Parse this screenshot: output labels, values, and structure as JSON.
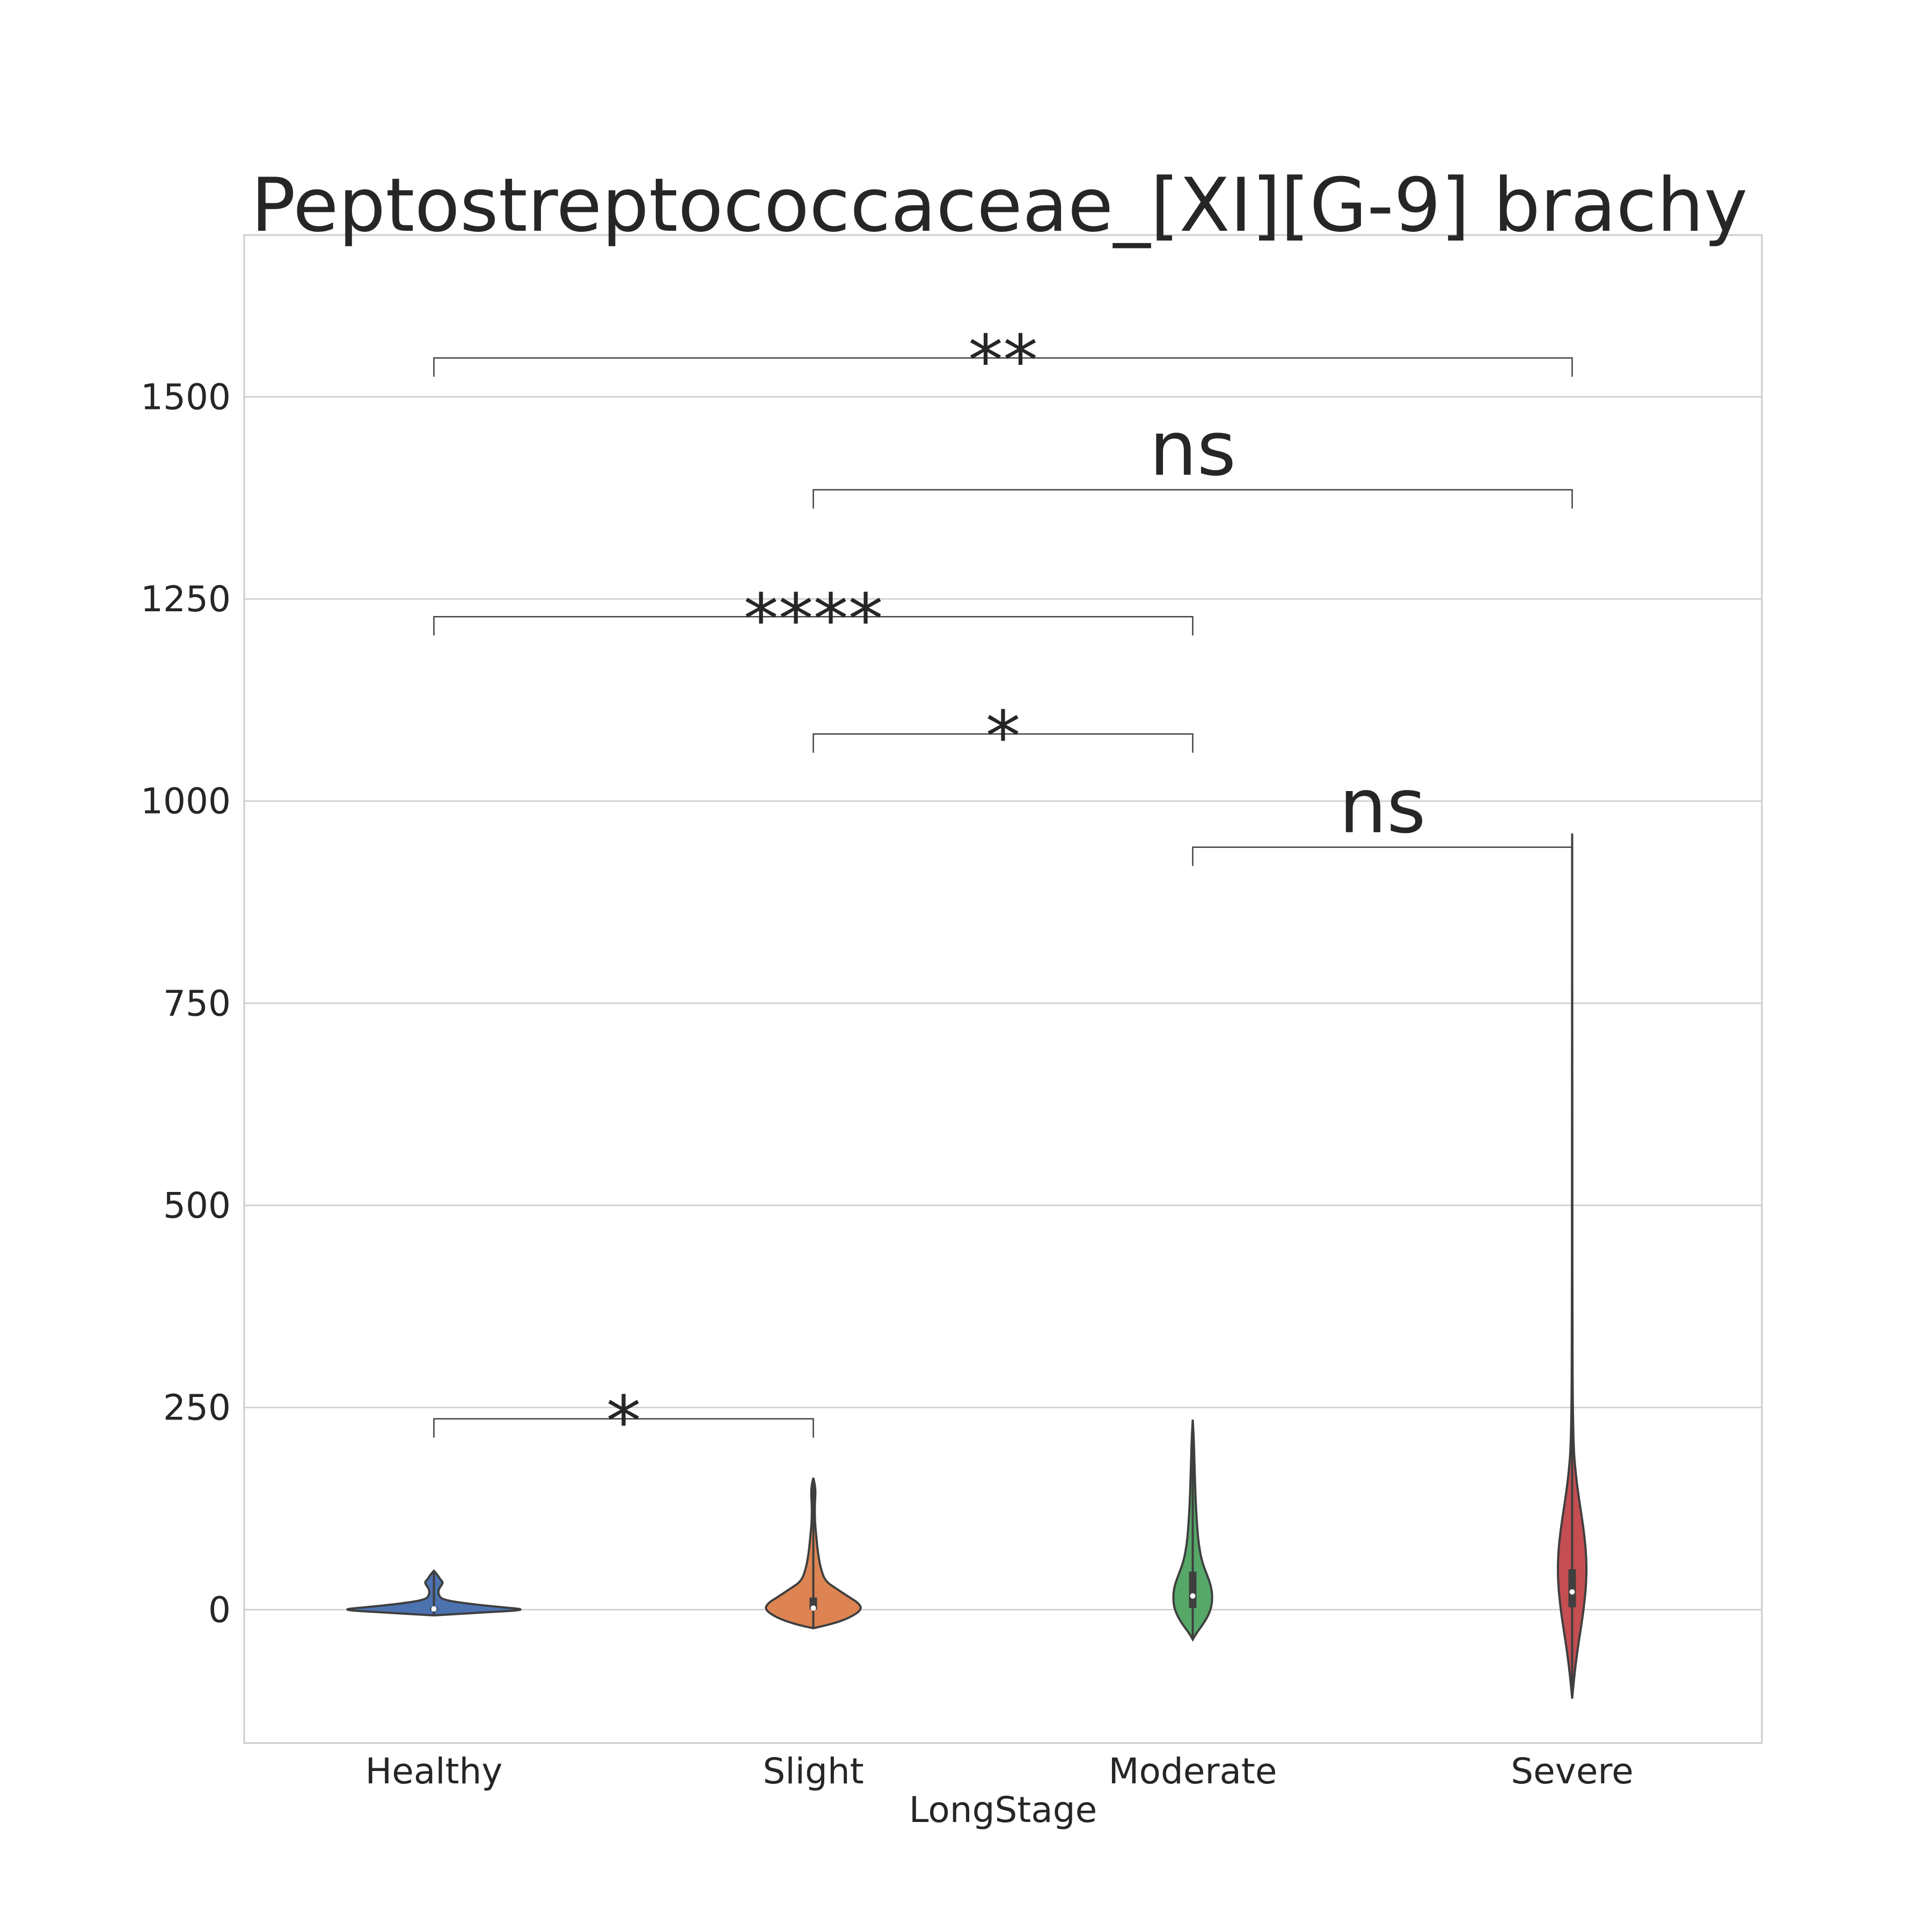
{
  "chart_data": {
    "type": "violin",
    "title": "Peptostreptococcaceae_[XI][G-9] brachy",
    "xlabel": "LongStage",
    "ylabel": "",
    "categories": [
      "Healthy",
      "Slight",
      "Moderate",
      "Severe"
    ],
    "ylim": [
      -165,
      1700
    ],
    "yticks": [
      0,
      250,
      500,
      750,
      1000,
      1250,
      1500
    ],
    "grid": true,
    "colors": [
      "#4c72b0",
      "#dd8452",
      "#55a868",
      "#c44e52"
    ],
    "violins": [
      {
        "category": "Healthy",
        "min": -7,
        "max": 48,
        "q1": 0,
        "median": 1,
        "q3": 3,
        "profile": [
          [
            -7,
            0.01
          ],
          [
            -3,
            0.38
          ],
          [
            0,
            0.62
          ],
          [
            3,
            0.45
          ],
          [
            7,
            0.24
          ],
          [
            12,
            0.06
          ],
          [
            18,
            0.03
          ],
          [
            25,
            0.03
          ],
          [
            30,
            0.05
          ],
          [
            34,
            0.06
          ],
          [
            38,
            0.04
          ],
          [
            44,
            0.02
          ],
          [
            48,
            0.0
          ]
        ]
      },
      {
        "category": "Slight",
        "min": -23,
        "max": 163,
        "q1": 0,
        "median": 2,
        "q3": 15,
        "profile": [
          [
            -23,
            0.0
          ],
          [
            -18,
            0.12
          ],
          [
            -10,
            0.24
          ],
          [
            0,
            0.32
          ],
          [
            8,
            0.3
          ],
          [
            15,
            0.24
          ],
          [
            25,
            0.16
          ],
          [
            35,
            0.08
          ],
          [
            50,
            0.05
          ],
          [
            70,
            0.03
          ],
          [
            90,
            0.02
          ],
          [
            110,
            0.01
          ],
          [
            130,
            0.01
          ],
          [
            145,
            0.015
          ],
          [
            155,
            0.01
          ],
          [
            163,
            0.0
          ]
        ]
      },
      {
        "category": "Moderate",
        "min": -37,
        "max": 235,
        "q1": 2,
        "median": 17,
        "q3": 47,
        "profile": [
          [
            -37,
            0.0
          ],
          [
            -30,
            0.02
          ],
          [
            -15,
            0.08
          ],
          [
            0,
            0.12
          ],
          [
            15,
            0.13
          ],
          [
            30,
            0.12
          ],
          [
            45,
            0.09
          ],
          [
            60,
            0.06
          ],
          [
            80,
            0.04
          ],
          [
            100,
            0.03
          ],
          [
            130,
            0.02
          ],
          [
            160,
            0.015
          ],
          [
            190,
            0.01
          ],
          [
            215,
            0.006
          ],
          [
            235,
            0.0
          ]
        ]
      },
      {
        "category": "Severe",
        "min": -110,
        "max": 960,
        "q1": 3,
        "median": 22,
        "q3": 50,
        "profile": [
          [
            -110,
            0.0
          ],
          [
            -80,
            0.015
          ],
          [
            -50,
            0.035
          ],
          [
            -20,
            0.06
          ],
          [
            0,
            0.075
          ],
          [
            25,
            0.09
          ],
          [
            50,
            0.095
          ],
          [
            75,
            0.09
          ],
          [
            100,
            0.075
          ],
          [
            125,
            0.055
          ],
          [
            150,
            0.035
          ],
          [
            175,
            0.02
          ],
          [
            200,
            0.01
          ],
          [
            250,
            0.004
          ],
          [
            350,
            0.002
          ],
          [
            500,
            0.001
          ],
          [
            700,
            0.001
          ],
          [
            960,
            0.0
          ]
        ]
      }
    ],
    "annotations": [
      {
        "from": "Healthy",
        "to": "Slight",
        "y": 236,
        "label": "*"
      },
      {
        "from": "Moderate",
        "to": "Severe",
        "y": 943,
        "label": "ns"
      },
      {
        "from": "Slight",
        "to": "Moderate",
        "y": 1083,
        "label": "*"
      },
      {
        "from": "Healthy",
        "to": "Moderate",
        "y": 1228,
        "label": "****"
      },
      {
        "from": "Slight",
        "to": "Severe",
        "y": 1385,
        "label": "ns"
      },
      {
        "from": "Healthy",
        "to": "Severe",
        "y": 1548,
        "label": "**"
      }
    ]
  }
}
